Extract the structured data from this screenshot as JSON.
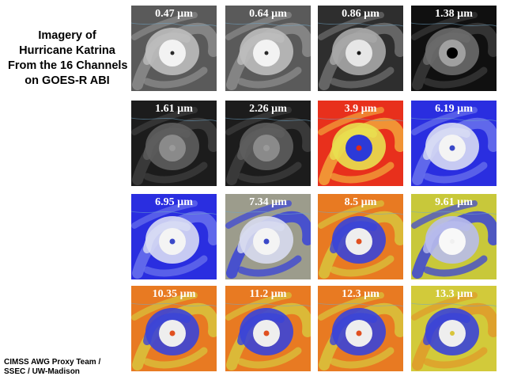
{
  "title": {
    "line1": "Imagery of",
    "line2": "Hurricane Katrina",
    "line3": "From the 16 Channels",
    "line4": "on GOES-R ABI"
  },
  "credit": {
    "line1": "CIMSS AWG Proxy Team /",
    "line2": "SSEC / UW-Madison"
  },
  "channels": [
    {
      "label": "0.47 µm",
      "style": "visible-gray"
    },
    {
      "label": "0.64 µm",
      "style": "visible-gray"
    },
    {
      "label": "0.86 µm",
      "style": "visible-dark"
    },
    {
      "label": "1.38 µm",
      "style": "cirrus-dark"
    },
    {
      "label": "1.61 µm",
      "style": "nearir-dark"
    },
    {
      "label": "2.26 µm",
      "style": "nearir-dark"
    },
    {
      "label": "3.9 µm",
      "style": "ir-red-enhanced"
    },
    {
      "label": "6.19 µm",
      "style": "water-vapor-blue"
    },
    {
      "label": "6.95 µm",
      "style": "water-vapor-blue"
    },
    {
      "label": "7.34 µm",
      "style": "water-vapor-blue-gray"
    },
    {
      "label": "8.5 µm",
      "style": "ir-orange-enhanced"
    },
    {
      "label": "9.61 µm",
      "style": "ozone-yellow"
    },
    {
      "label": "10.35 µm",
      "style": "ir-orange-enhanced"
    },
    {
      "label": "11.2 µm",
      "style": "ir-orange-enhanced"
    },
    {
      "label": "12.3 µm",
      "style": "ir-orange-enhanced"
    },
    {
      "label": "13.3 µm",
      "style": "co2-yellow"
    }
  ],
  "colors": {
    "background": "#ffffff",
    "label_text": "#ffffff",
    "title_text": "#000000"
  }
}
